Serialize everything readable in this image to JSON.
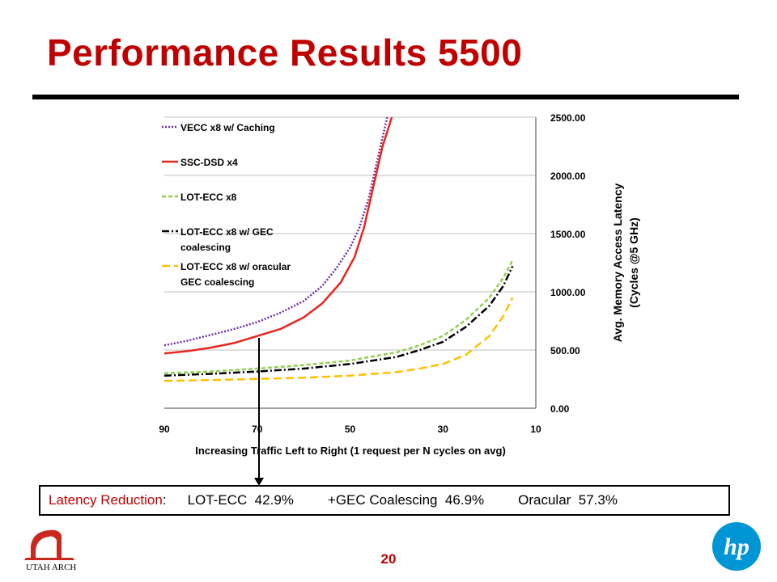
{
  "slide": {
    "title": "Performance Results 5500",
    "page_number": "20"
  },
  "callout": {
    "label": "Latency Reduction",
    "colon": ":",
    "items": [
      "LOT-ECC  42.9%",
      "+GEC Coalescing  46.9%",
      "Oracular  57.3%"
    ]
  },
  "logos": {
    "left_text": "UTAH ARCH",
    "right_text": "hp"
  },
  "chart_data": {
    "type": "line",
    "xlabel": "Increasing Traffic Left to Right (1 request per N cycles on avg)",
    "ylabel": "Avg. Memory Access Latency (Cycles @5 GHz)",
    "x_reversed": true,
    "xlim": [
      90,
      10
    ],
    "ylim": [
      0,
      2500
    ],
    "x_ticks": [
      "90",
      "70",
      "50",
      "30",
      "10"
    ],
    "y_ticks": [
      "0.00",
      "500.00",
      "1000.00",
      "1500.00",
      "2000.00",
      "2500.00"
    ],
    "y_axis_side": "right",
    "grid": true,
    "legend_position": "top-left",
    "series": [
      {
        "name": "VECC x8 w/ Caching",
        "color": "#7030a0",
        "dash": "dotted",
        "x": [
          90,
          85,
          80,
          75,
          70,
          65,
          60,
          56,
          53,
          50,
          48,
          46,
          44,
          42
        ],
        "y": [
          540,
          580,
          630,
          680,
          740,
          820,
          920,
          1050,
          1200,
          1380,
          1550,
          1800,
          2150,
          2500
        ]
      },
      {
        "name": "SSC-DSD x4",
        "color": "#e8261e",
        "dash": "solid",
        "x": [
          90,
          85,
          80,
          75,
          70,
          65,
          60,
          56,
          52,
          49,
          47,
          45,
          43,
          41
        ],
        "y": [
          470,
          490,
          520,
          560,
          620,
          680,
          780,
          900,
          1080,
          1300,
          1550,
          1900,
          2250,
          2500
        ]
      },
      {
        "name": "LOT-ECC x8",
        "color": "#92d050",
        "dash": "dashed",
        "x": [
          90,
          80,
          70,
          60,
          50,
          40,
          35,
          30,
          25,
          20,
          17,
          15
        ],
        "y": [
          300,
          315,
          340,
          370,
          410,
          480,
          540,
          620,
          760,
          950,
          1120,
          1270
        ]
      },
      {
        "name": "LOT-ECC x8 w/ GEC coalescing",
        "color": "#000000",
        "dash": "dash-dot",
        "x": [
          90,
          80,
          70,
          60,
          50,
          40,
          35,
          30,
          25,
          20,
          17,
          15
        ],
        "y": [
          280,
          295,
          315,
          340,
          380,
          440,
          500,
          570,
          700,
          880,
          1050,
          1220
        ]
      },
      {
        "name": "LOT-ECC x8 w/ oracular GEC coalescing",
        "color": "#ffc000",
        "dash": "long-dash",
        "x": [
          90,
          80,
          70,
          60,
          50,
          40,
          35,
          30,
          25,
          20,
          17,
          15
        ],
        "y": [
          235,
          242,
          252,
          262,
          280,
          310,
          340,
          380,
          460,
          620,
          790,
          950
        ]
      }
    ]
  }
}
